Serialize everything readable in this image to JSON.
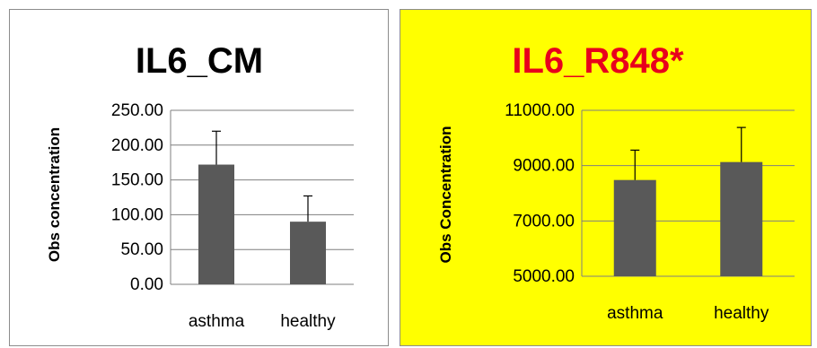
{
  "chart_data": [
    {
      "type": "bar",
      "title": "IL6_CM",
      "title_color": "#000000",
      "background": "#ffffff",
      "ylabel": "Obs concentration",
      "categories": [
        "asthma",
        "healthy"
      ],
      "values": [
        172,
        90
      ],
      "error_upper": [
        220,
        127
      ],
      "ylim": [
        0,
        250
      ],
      "yticks": [
        0,
        50,
        100,
        150,
        200,
        250
      ],
      "ytick_labels": [
        "0.00",
        "50.00",
        "100.00",
        "150.00",
        "200.00",
        "250.00"
      ],
      "bar_color": "#595959",
      "grid": true,
      "legend": "none"
    },
    {
      "type": "bar",
      "title": "IL6_R848*",
      "title_color": "#e8001c",
      "background": "#ffff00",
      "ylabel": "Obs Concentration",
      "categories": [
        "asthma",
        "healthy"
      ],
      "values": [
        8480,
        9130
      ],
      "error_upper": [
        9560,
        10380
      ],
      "ylim": [
        5000,
        11000
      ],
      "yticks": [
        5000,
        7000,
        9000,
        11000
      ],
      "ytick_labels": [
        "5000.00",
        "7000.00",
        "9000.00",
        "11000.00"
      ],
      "bar_color": "#595959",
      "grid": true,
      "legend": "none"
    }
  ]
}
